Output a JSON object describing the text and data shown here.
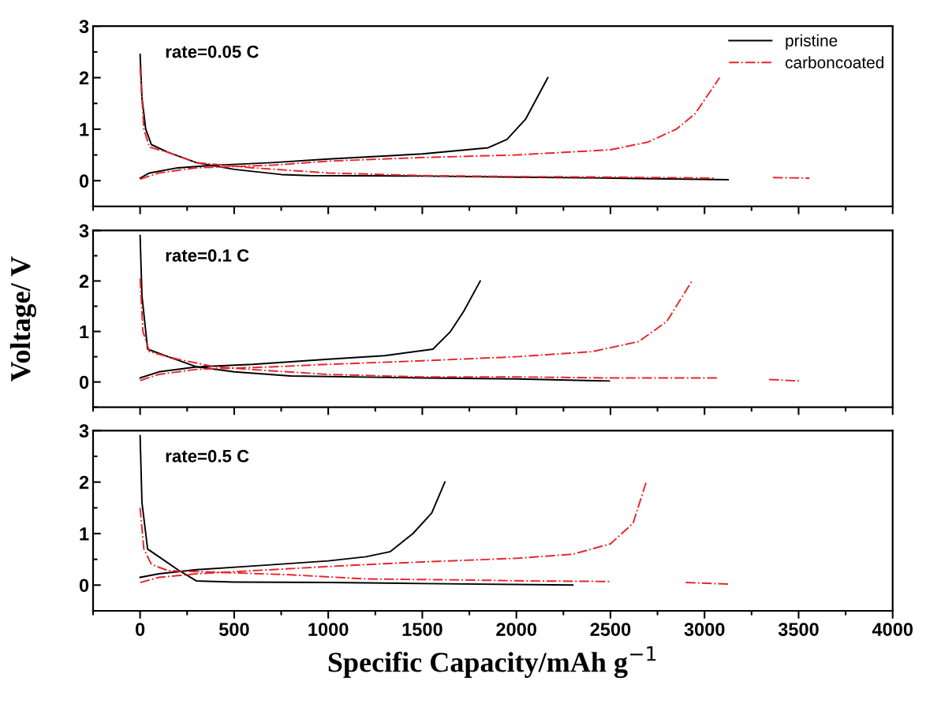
{
  "chart_data": [
    {
      "type": "line",
      "annotations": [
        {
          "text": "rate=0.05 C"
        }
      ],
      "xlim": [
        -250,
        4000
      ],
      "xticks": [
        0,
        500,
        1000,
        1500,
        2000,
        2500,
        3000,
        3500,
        4000
      ],
      "ylim": [
        -0.5,
        3
      ],
      "yticks": [
        0,
        1,
        2,
        3
      ],
      "tick_labels": "y",
      "legend": "top right",
      "grid": false,
      "series": [
        {
          "name": "pristine",
          "color": "#000000",
          "line_style": "solid",
          "x": [
            0,
            10,
            30,
            60,
            150,
            300,
            500,
            750,
            900,
            1500,
            2000,
            2500,
            3125
          ],
          "values": [
            2.45,
            1.6,
            1.0,
            0.7,
            0.55,
            0.35,
            0.22,
            0.12,
            0.1,
            0.09,
            0.07,
            0.05,
            0.02
          ]
        },
        {
          "color": "#000000",
          "line_style": "solid",
          "x": [
            0,
            50,
            200,
            400,
            700,
            1000,
            1500,
            1850,
            1950,
            2050,
            2167
          ],
          "values": [
            0.05,
            0.15,
            0.25,
            0.3,
            0.35,
            0.42,
            0.52,
            0.64,
            0.8,
            1.2,
            2.0
          ]
        },
        {
          "name": "carboncoated",
          "color": "#e8262a",
          "line_style": "dashdot",
          "x": [
            0,
            20,
            50,
            150,
            300,
            600,
            1000,
            1500,
            2000,
            2500,
            3050,
            3200,
            3364,
            3557
          ],
          "values": [
            2.2,
            1.0,
            0.65,
            0.55,
            0.35,
            0.25,
            0.15,
            0.1,
            0.08,
            0.07,
            0.05,
            null,
            0.06,
            0.05
          ]
        },
        {
          "color": "#e8262a",
          "line_style": "dashdot",
          "x": [
            0,
            100,
            300,
            700,
            1000,
            1500,
            2000,
            2500,
            2700,
            2850,
            2950,
            3080
          ],
          "values": [
            0.03,
            0.15,
            0.25,
            0.3,
            0.38,
            0.45,
            0.5,
            0.6,
            0.75,
            1.0,
            1.3,
            2.0
          ]
        }
      ]
    },
    {
      "type": "line",
      "annotations": [
        {
          "text": "rate=0.1 C"
        }
      ],
      "ylabel": "Voltage/ V",
      "xlim": [
        -250,
        4000
      ],
      "xticks": [
        0,
        500,
        1000,
        1500,
        2000,
        2500,
        3000,
        3500,
        4000
      ],
      "ylim": [
        -0.5,
        3
      ],
      "yticks": [
        0,
        1,
        2,
        3
      ],
      "tick_labels": "y",
      "grid": false,
      "series": [
        {
          "color": "#000000",
          "line_style": "solid",
          "x": [
            0,
            10,
            40,
            150,
            300,
            500,
            800,
            1500,
            2000,
            2494
          ],
          "values": [
            2.9,
            1.7,
            0.65,
            0.5,
            0.3,
            0.2,
            0.12,
            0.08,
            0.06,
            0.02
          ]
        },
        {
          "color": "#000000",
          "line_style": "solid",
          "x": [
            0,
            100,
            300,
            600,
            1000,
            1300,
            1556,
            1650,
            1720,
            1808
          ],
          "values": [
            0.08,
            0.2,
            0.3,
            0.35,
            0.45,
            0.52,
            0.65,
            1.0,
            1.4,
            2.0
          ]
        },
        {
          "color": "#e8262a",
          "line_style": "dashdot",
          "x": [
            0,
            15,
            50,
            200,
            400,
            700,
            1000,
            1500,
            2000,
            2500,
            2640,
            3067,
            3200,
            3343,
            3502
          ],
          "values": [
            2.05,
            1.0,
            0.6,
            0.45,
            0.3,
            0.22,
            0.15,
            0.1,
            0.1,
            0.08,
            0.08,
            0.08,
            null,
            0.05,
            0.02
          ]
        },
        {
          "color": "#e8262a",
          "line_style": "dashdot",
          "x": [
            0,
            100,
            300,
            700,
            1000,
            1500,
            2000,
            2400,
            2650,
            2800,
            2933
          ],
          "values": [
            0.03,
            0.15,
            0.25,
            0.3,
            0.35,
            0.42,
            0.5,
            0.6,
            0.8,
            1.2,
            2.0
          ]
        }
      ]
    },
    {
      "type": "line",
      "annotations": [
        {
          "text": "rate=0.5 C"
        }
      ],
      "xlabel": "Specific Capacity/mAh g$^{−1}$",
      "xlim": [
        -250,
        4000
      ],
      "xticks": [
        0,
        500,
        1000,
        1500,
        2000,
        2500,
        3000,
        3500,
        4000
      ],
      "ylim": [
        -0.5,
        3
      ],
      "yticks": [
        0,
        1,
        2,
        3
      ],
      "grid": false,
      "series": [
        {
          "color": "#000000",
          "line_style": "solid",
          "x": [
            0,
            10,
            40,
            100,
            200,
            300,
            500,
            1000,
            1500,
            2300
          ],
          "values": [
            2.9,
            1.6,
            0.7,
            0.55,
            0.3,
            0.08,
            0.06,
            0.05,
            0.03,
            0.0
          ]
        },
        {
          "color": "#000000",
          "line_style": "solid",
          "x": [
            0,
            100,
            300,
            600,
            1000,
            1200,
            1330,
            1450,
            1550,
            1620
          ],
          "values": [
            0.15,
            0.22,
            0.3,
            0.37,
            0.47,
            0.55,
            0.65,
            1.0,
            1.4,
            2.0
          ]
        },
        {
          "color": "#e8262a",
          "line_style": "dashdot",
          "x": [
            0,
            20,
            60,
            150,
            400,
            800,
            1200,
            1700,
            2100,
            2500,
            2700,
            2900,
            3130
          ],
          "values": [
            1.5,
            0.7,
            0.4,
            0.28,
            0.25,
            0.2,
            0.12,
            0.1,
            0.08,
            0.07,
            null,
            0.05,
            0.02
          ]
        },
        {
          "color": "#e8262a",
          "line_style": "dashdot",
          "x": [
            0,
            100,
            300,
            700,
            1100,
            1500,
            2000,
            2300,
            2500,
            2620,
            2690
          ],
          "values": [
            0.05,
            0.15,
            0.22,
            0.3,
            0.38,
            0.45,
            0.52,
            0.6,
            0.8,
            1.2,
            2.0
          ]
        }
      ]
    }
  ]
}
